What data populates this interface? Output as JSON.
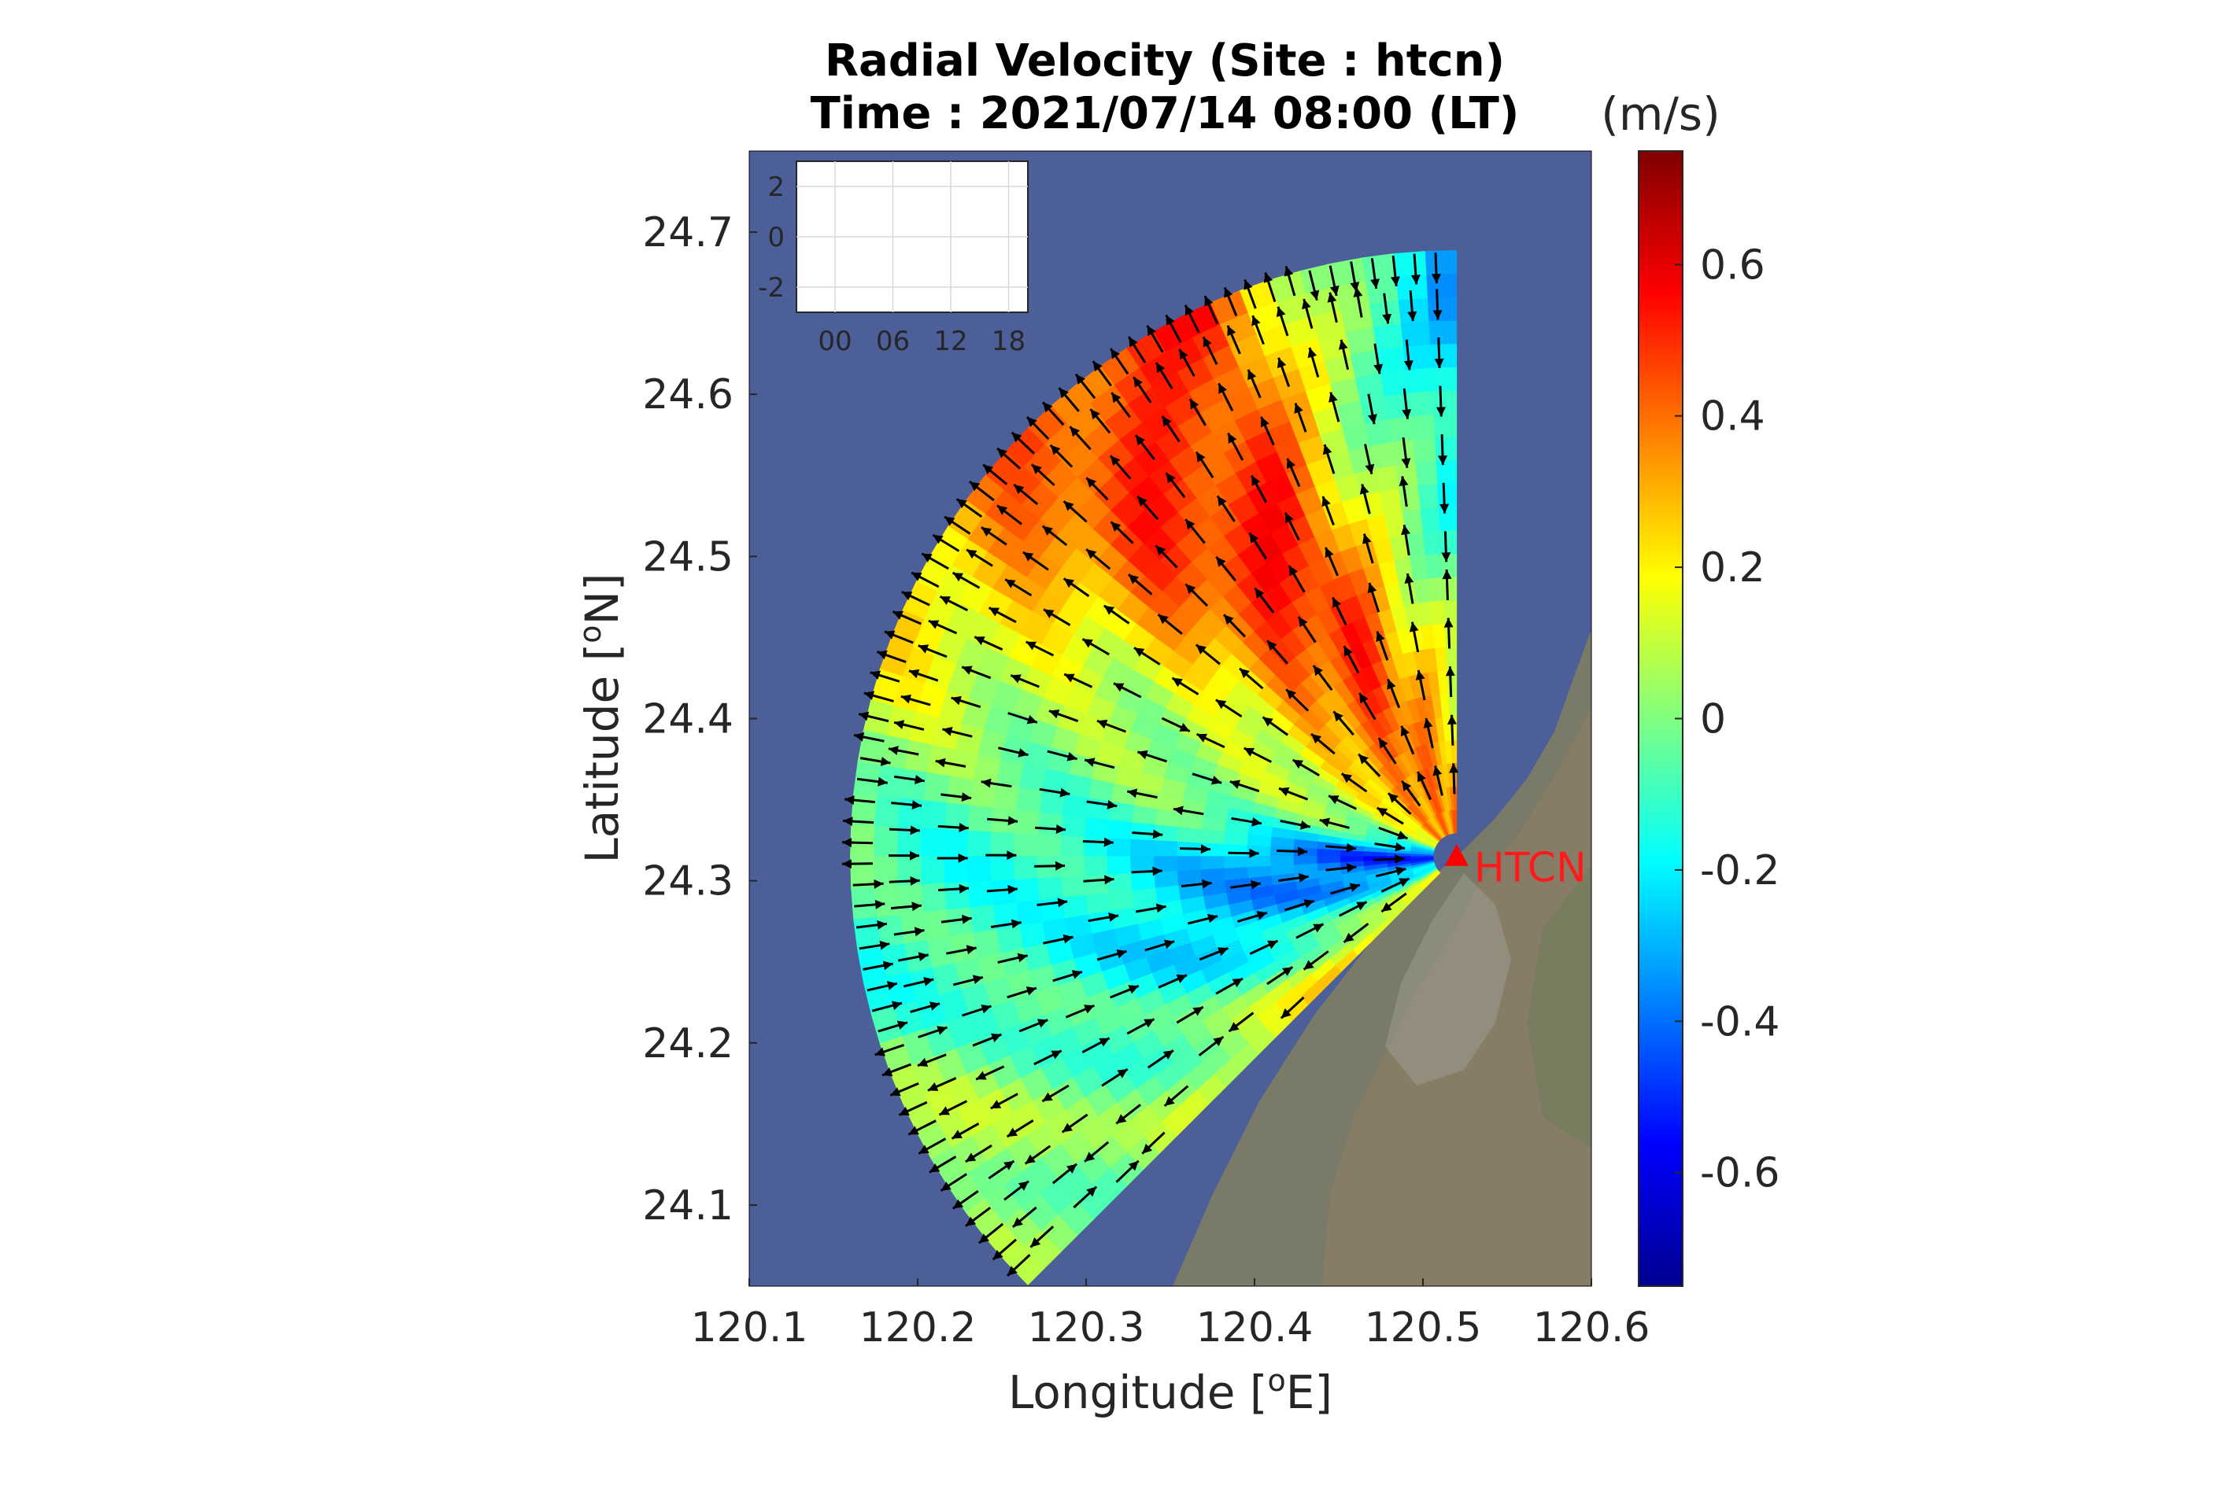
{
  "chart_data": {
    "type": "heatmap",
    "title": "Radial Velocity (Site : htcn)",
    "subtitle": "Time : 2021/07/14 08:00 (LT)",
    "xlabel": "Longitude [",
    "xlabel_sup": "o",
    "xlabel_end": "E]",
    "ylabel": "Latitude [",
    "ylabel_sup": "o",
    "ylabel_end": "N]",
    "xlim": [
      120.1,
      120.6
    ],
    "ylim": [
      24.05,
      24.75
    ],
    "xticks": [
      "120.1",
      "120.2",
      "120.3",
      "120.4",
      "120.5",
      "120.6"
    ],
    "xtick_values": [
      120.1,
      120.2,
      120.3,
      120.4,
      120.5,
      120.6
    ],
    "yticks": [
      "24.1",
      "24.2",
      "24.3",
      "24.4",
      "24.5",
      "24.6",
      "24.7"
    ],
    "ytick_values": [
      24.1,
      24.2,
      24.3,
      24.4,
      24.5,
      24.6,
      24.7
    ],
    "colorbar": {
      "unit": "(m/s)",
      "range": [
        -0.75,
        0.75
      ],
      "ticks": [
        "0.6",
        "0.4",
        "0.2",
        "0",
        "-0.2",
        "-0.4",
        "-0.6"
      ],
      "tick_values": [
        0.6,
        0.4,
        0.2,
        0,
        -0.2,
        -0.4,
        -0.6
      ],
      "colormap": "jet"
    },
    "site": {
      "label": "HTCN",
      "lon": 120.52,
      "lat": 24.315,
      "color": "#ff0000"
    },
    "sector": {
      "min_bearing_deg": 225,
      "max_bearing_deg": 360,
      "max_range_deg": 0.36,
      "sea_color": "#4c5f99"
    },
    "velocity_by_bearing": [
      {
        "bearing": 0,
        "v_near": 0.35,
        "v_far": -0.45
      },
      {
        "bearing": 15,
        "v_near": 0.35,
        "v_far": 0.05
      },
      {
        "bearing": 25,
        "v_near": 0.4,
        "v_far": 0.55
      },
      {
        "bearing": 45,
        "v_near": 0.35,
        "v_far": 0.45
      },
      {
        "bearing": 60,
        "v_near": 0.1,
        "v_far": 0.2
      },
      {
        "bearing": 75,
        "v_near": -0.1,
        "v_far": 0.15
      },
      {
        "bearing": 90,
        "v_near": -0.5,
        "v_far": 0.0
      },
      {
        "bearing": 105,
        "v_near": -0.35,
        "v_far": -0.1
      },
      {
        "bearing": 120,
        "v_near": -0.15,
        "v_far": 0.05
      },
      {
        "bearing": 135,
        "v_near": 0.25,
        "v_far": 0.0
      }
    ],
    "inset": {
      "yticks": [
        "2",
        "0",
        "-2"
      ],
      "ytick_values": [
        2,
        0,
        -2
      ],
      "xticks": [
        "00",
        "06",
        "12",
        "18"
      ],
      "xtick_values": [
        0,
        6,
        12,
        18
      ],
      "ylim": [
        -3,
        3
      ],
      "xlim": [
        -4,
        20
      ]
    }
  }
}
